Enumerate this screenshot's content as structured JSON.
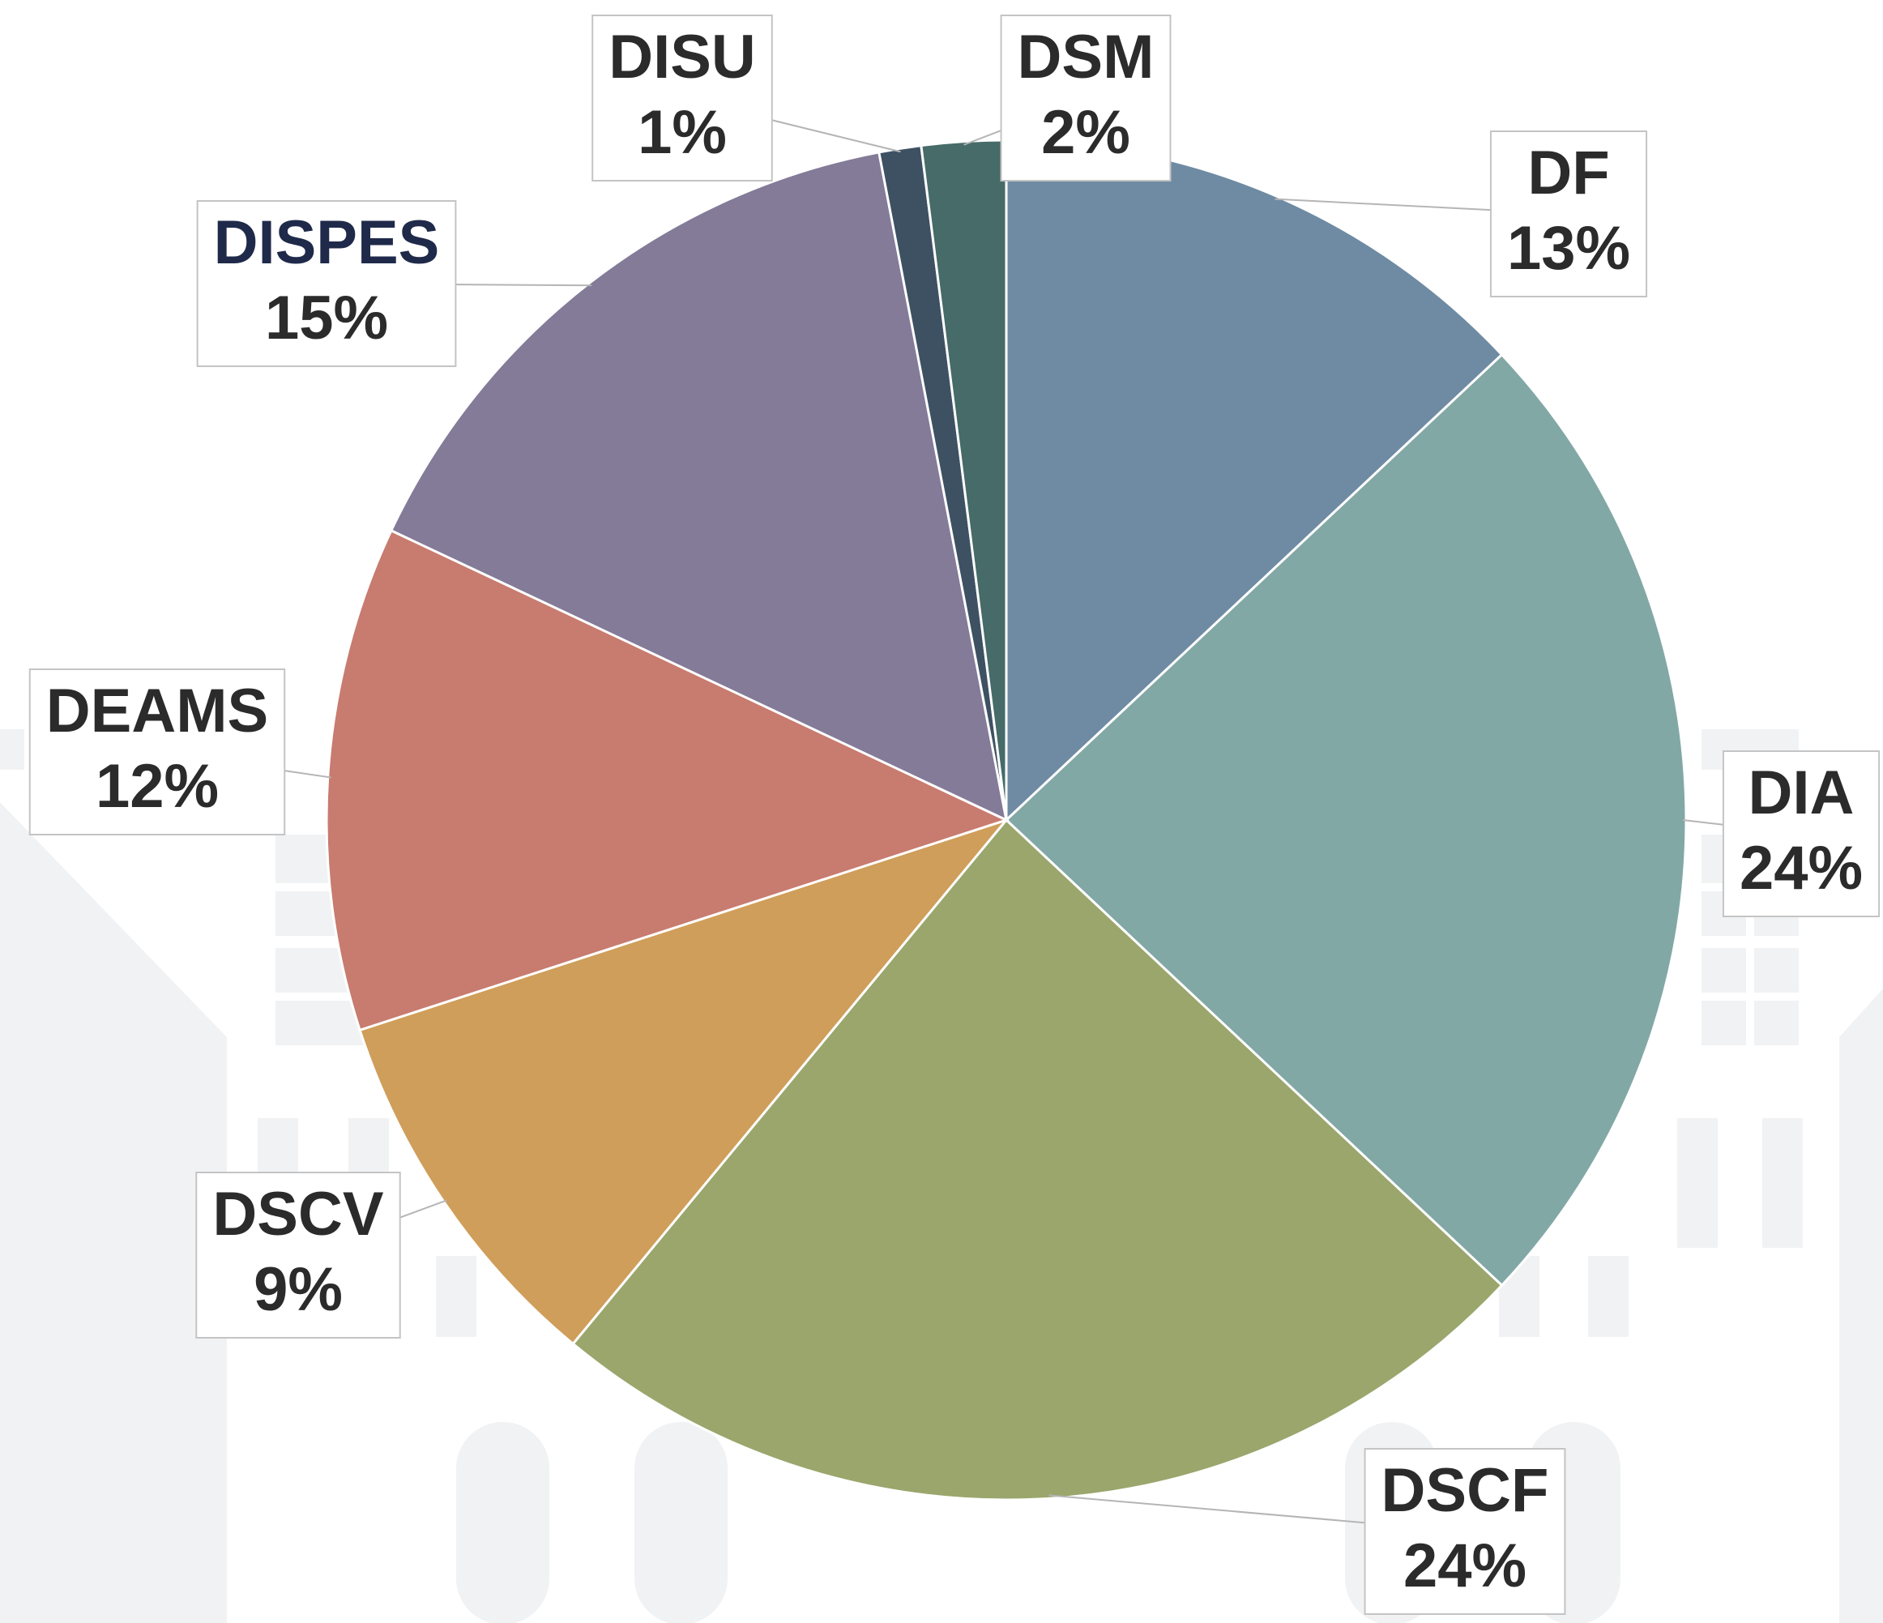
{
  "chart_data": {
    "type": "pie",
    "categories": [
      "DF",
      "DIA",
      "DSCF",
      "DSCV",
      "DEAMS",
      "DISPES",
      "DISU",
      "DSM"
    ],
    "values": [
      13,
      24,
      24,
      9,
      12,
      15,
      1,
      2
    ],
    "value_labels": [
      "13%",
      "24%",
      "24%",
      "9%",
      "12%",
      "15%",
      "1%",
      "2%"
    ],
    "colors": [
      "#6f8ba3",
      "#82a8a6",
      "#9aa66c",
      "#cf9e5a",
      "#c87b6f",
      "#837b98",
      "#3e5163",
      "#466b69"
    ]
  }
}
